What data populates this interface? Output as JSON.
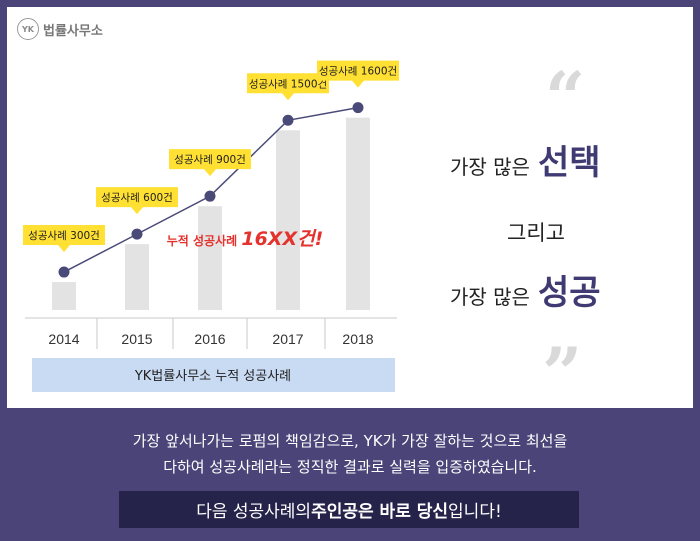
{
  "logo": {
    "mark": "YK",
    "name": "법률사무소"
  },
  "chart_data": {
    "type": "bar",
    "categories": [
      "2014",
      "2015",
      "2016",
      "2017",
      "2018"
    ],
    "series": [
      {
        "values": [
          300,
          600,
          900,
          1500,
          1600
        ]
      }
    ],
    "callouts": [
      "성공사례 300건",
      "성공사례 600건",
      "성공사례 900건",
      "성공사례 1500건",
      "성공사례 1600건"
    ],
    "annotation": {
      "text": "누적 성공사례 ",
      "highlight": "16XX건!"
    },
    "caption": "YK법률사무소 누적 성공사례",
    "ylim": [
      0,
      1700
    ],
    "grid": false,
    "colors": {
      "bar": "#e3e3e3",
      "line": "#4a4a78",
      "callout": "#ffe033",
      "annotation": "#e5322d",
      "caption_bg": "#c9daf3"
    }
  },
  "headline": {
    "line1_prefix": "가장 많은",
    "line1_emph": "선택",
    "line2": "그리고",
    "line3_prefix": "가장 많은",
    "line3_emph": "성공"
  },
  "quotes": {
    "open": "“",
    "close": "”"
  },
  "description": {
    "line1": "가장 앞서나가는 로펌의 책임감으로, YK가 가장 잘하는 것으로 최선을",
    "line2": "다하여 성공사례라는 정직한 결과로 실력을 입증하였습니다."
  },
  "cta": {
    "prefix": "다음 성공사례의 ",
    "emph1": "주인공은 바로 당신",
    "suffix": "입니다!"
  }
}
